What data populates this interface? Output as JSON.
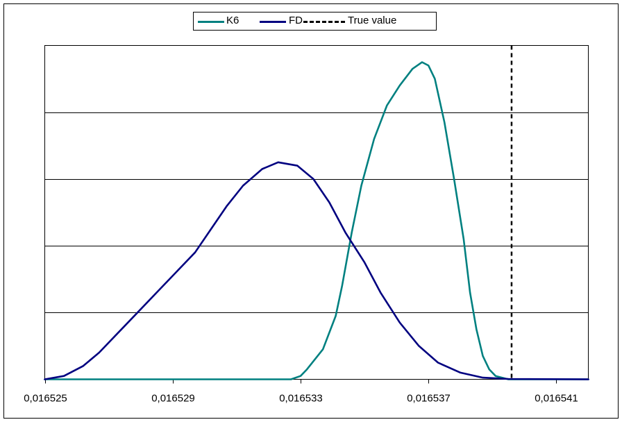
{
  "chart_data": {
    "type": "line",
    "title": "",
    "xlabel": "",
    "ylabel": "",
    "xlim": [
      0.016525,
      0.016542
    ],
    "ylim": [
      0,
      1
    ],
    "x_ticks": [
      {
        "value": 0.016525,
        "label": "0,016525"
      },
      {
        "value": 0.016529,
        "label": "0,016529"
      },
      {
        "value": 0.016533,
        "label": "0,016533"
      },
      {
        "value": 0.016537,
        "label": "0,016537"
      },
      {
        "value": 0.016541,
        "label": "0,016541"
      }
    ],
    "y_gridlines": [
      0.2,
      0.4,
      0.6,
      0.8
    ],
    "y_tick_labels_visible": false,
    "legend_position": "top-center",
    "series": [
      {
        "name": "K6",
        "color": "#008080",
        "style": "solid",
        "points": [
          [
            0.016525,
            0.0
          ],
          [
            0.0165305,
            0.0
          ],
          [
            0.0165327,
            0.0
          ],
          [
            0.016533,
            0.01
          ],
          [
            0.0165332,
            0.03
          ],
          [
            0.0165337,
            0.09
          ],
          [
            0.0165341,
            0.19
          ],
          [
            0.0165343,
            0.28
          ],
          [
            0.0165346,
            0.44
          ],
          [
            0.0165349,
            0.58
          ],
          [
            0.0165353,
            0.72
          ],
          [
            0.0165357,
            0.82
          ],
          [
            0.0165361,
            0.88
          ],
          [
            0.0165365,
            0.93
          ],
          [
            0.0165368,
            0.95
          ],
          [
            0.016537,
            0.94
          ],
          [
            0.0165372,
            0.9
          ],
          [
            0.0165375,
            0.77
          ],
          [
            0.0165378,
            0.6
          ],
          [
            0.0165381,
            0.42
          ],
          [
            0.0165383,
            0.26
          ],
          [
            0.0165385,
            0.15
          ],
          [
            0.0165387,
            0.07
          ],
          [
            0.0165389,
            0.03
          ],
          [
            0.0165391,
            0.01
          ],
          [
            0.0165395,
            0.0
          ],
          [
            0.016542,
            0.0
          ]
        ]
      },
      {
        "name": "FD",
        "color": "#000080",
        "style": "solid",
        "points": [
          [
            0.016525,
            0.0
          ],
          [
            0.0165256,
            0.01
          ],
          [
            0.0165262,
            0.04
          ],
          [
            0.0165267,
            0.08
          ],
          [
            0.0165273,
            0.14
          ],
          [
            0.0165279,
            0.2
          ],
          [
            0.0165286,
            0.27
          ],
          [
            0.0165291,
            0.32
          ],
          [
            0.0165297,
            0.38
          ],
          [
            0.0165302,
            0.45
          ],
          [
            0.0165307,
            0.52
          ],
          [
            0.0165312,
            0.58
          ],
          [
            0.0165318,
            0.63
          ],
          [
            0.0165323,
            0.65
          ],
          [
            0.0165329,
            0.64
          ],
          [
            0.0165334,
            0.6
          ],
          [
            0.0165339,
            0.53
          ],
          [
            0.0165344,
            0.44
          ],
          [
            0.016535,
            0.35
          ],
          [
            0.0165355,
            0.26
          ],
          [
            0.0165361,
            0.17
          ],
          [
            0.0165367,
            0.1
          ],
          [
            0.0165373,
            0.05
          ],
          [
            0.016538,
            0.02
          ],
          [
            0.0165387,
            0.005
          ],
          [
            0.0165395,
            0.001
          ],
          [
            0.016542,
            0.0
          ]
        ]
      },
      {
        "name": "True value",
        "color": "#000000",
        "style": "dashed",
        "x": 0.0165396
      }
    ]
  }
}
